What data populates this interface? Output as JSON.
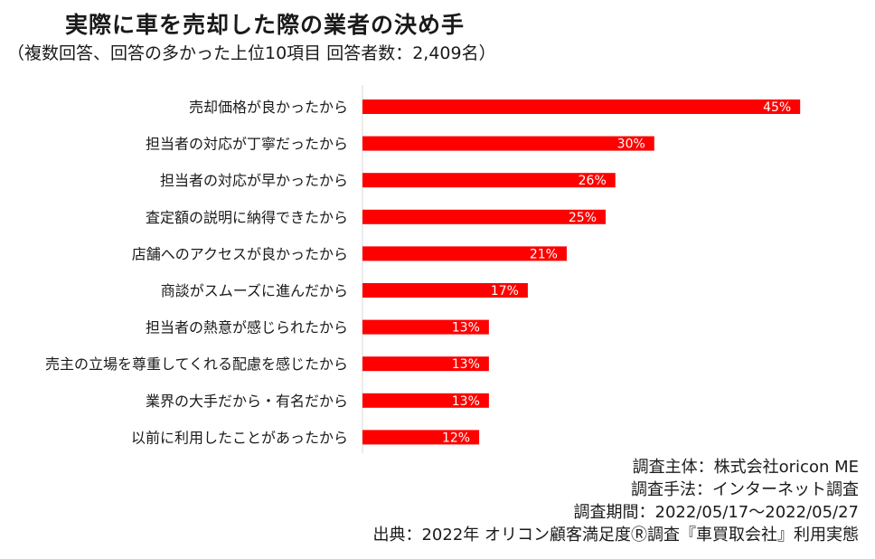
{
  "title": "実際に車を売却した際の業者の決め手",
  "subtitle": "（複数回答、回答の多かった上位10項目 回答者数：2,409名）",
  "colors": {
    "bar": "#ff0000",
    "bar_label": "#ffffff",
    "axis": "#d9d9d9"
  },
  "chart_data": {
    "type": "bar",
    "orientation": "horizontal",
    "categories": [
      "売却価格が良かったから",
      "担当者の対応が丁寧だったから",
      "担当者の対応が早かったから",
      "査定額の説明に納得できたから",
      "店舗へのアクセスが良かったから",
      "商談がスムーズに進んだから",
      "担当者の熱意が感じられたから",
      "売主の立場を尊重してくれる配慮を感じたから",
      "業界の大手だから・有名だから",
      "以前に利用したことがあったから"
    ],
    "values": [
      45,
      30,
      26,
      25,
      21,
      17,
      13,
      13,
      13,
      12
    ],
    "value_labels": [
      "45%",
      "30%",
      "26%",
      "25%",
      "21%",
      "17%",
      "13%",
      "13%",
      "13%",
      "12%"
    ],
    "unit": "%",
    "xlim": [
      0,
      50
    ],
    "grid": false,
    "legend": "none"
  },
  "notes": [
    "調査主体：株式会社oricon ME",
    "調査手法：インターネット調査",
    "調査期間：2022/05/17～2022/05/27",
    "出典：2022年 オリコン顧客満足度Ⓡ調査『車買取会社』利用実態"
  ]
}
